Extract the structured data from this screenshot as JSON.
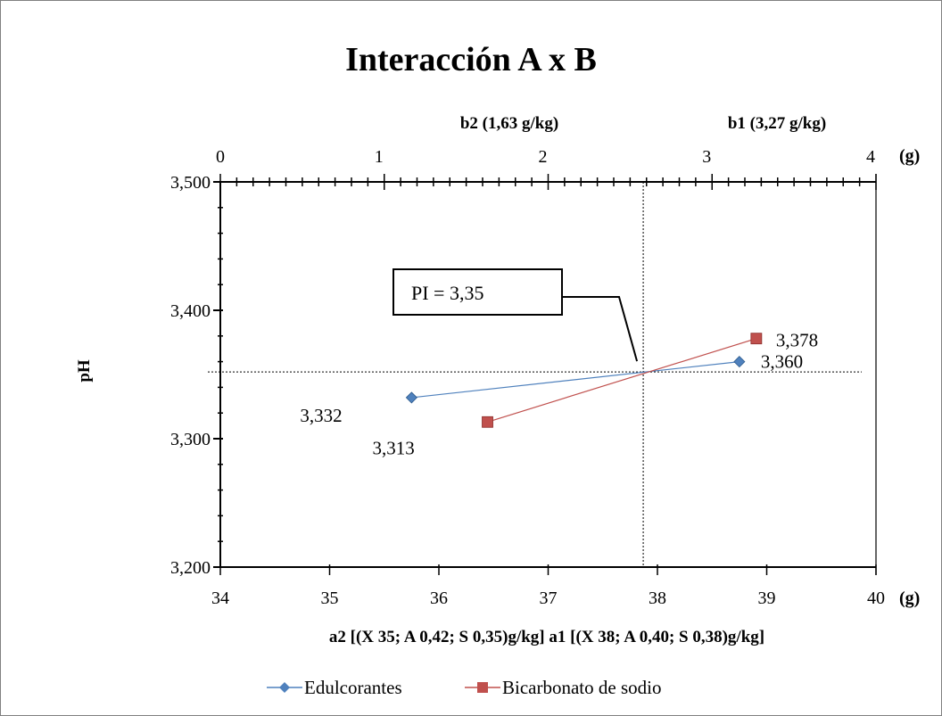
{
  "chart_data": {
    "type": "line",
    "title": "Interacción A x B",
    "ylabel": "pH",
    "xlabel_bottom": "a2  [(X 35; A 0,42; S 0,35)g/kg] a1  [(X 38; A 0,40; S 0,38)g/kg]",
    "top_categories": {
      "b2": "b2 (1,63 g/kg)",
      "b1": "b1 (3,27 g/kg)"
    },
    "x_unit_bottom": "(g)",
    "x_unit_top": "(g)",
    "xlim_bottom": [
      34,
      40
    ],
    "xlim_top": [
      0,
      4
    ],
    "ylim": [
      3.2,
      3.5
    ],
    "x_ticks_bottom": [
      "34",
      "35",
      "36",
      "37",
      "38",
      "39",
      "40"
    ],
    "x_ticks_top": [
      "0",
      "1",
      "2",
      "3",
      "4"
    ],
    "y_ticks": [
      {
        "value": 3.2,
        "label": "3,200"
      },
      {
        "value": 3.3,
        "label": "3,300"
      },
      {
        "value": 3.4,
        "label": "3,400"
      },
      {
        "value": 3.5,
        "label": "3,500"
      }
    ],
    "grid": false,
    "legend_position": "bottom",
    "series": [
      {
        "name": "Edulcorantes",
        "axis": "bottom",
        "color": "#4f81bd",
        "marker": "diamond",
        "points": [
          {
            "x": 35.75,
            "y": 3.332,
            "label": "3,332"
          },
          {
            "x": 38.75,
            "y": 3.36,
            "label": "3,360"
          }
        ]
      },
      {
        "name": "Bicarbonato de sodio",
        "axis": "top",
        "color": "#c0504d",
        "marker": "square",
        "points": [
          {
            "x": 1.63,
            "y": 3.313,
            "label": "3,313"
          },
          {
            "x": 3.27,
            "y": 3.378,
            "label": "3,378"
          }
        ]
      }
    ],
    "intersection": {
      "x_bottom": 37.87,
      "y": 3.352,
      "annotation": "PI = 3,35"
    }
  }
}
